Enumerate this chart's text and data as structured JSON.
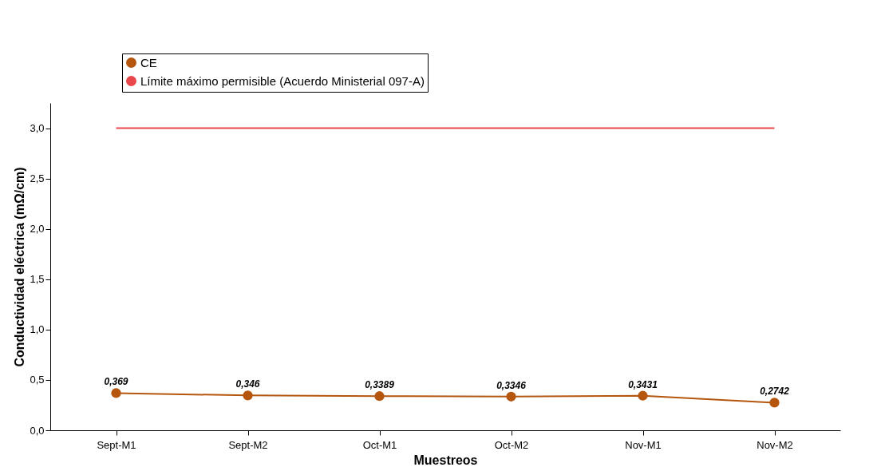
{
  "chart_data": {
    "type": "line",
    "xlabel": "Muestreos",
    "ylabel": "Conductividad eléctrica (mΩ/cm)",
    "categories": [
      "Sept-M1",
      "Sept-M2",
      "Oct-M1",
      "Oct-M2",
      "Nov-M1",
      "Nov-M2"
    ],
    "series": [
      {
        "name": "CE",
        "color": "#b5560f",
        "marker": "circle",
        "values": [
          0.369,
          0.346,
          0.3389,
          0.3346,
          0.3431,
          0.2742
        ],
        "value_labels": [
          "0,369",
          "0,346",
          "0,3389",
          "0,3346",
          "0,3431",
          "0,2742"
        ]
      },
      {
        "name": "Límite máximo permisible (Acuerdo Ministerial 097-A)",
        "color": "#e8474c",
        "marker": "none",
        "values": [
          3,
          3,
          3,
          3,
          3,
          3
        ]
      }
    ],
    "ylim": [
      0,
      3.25
    ],
    "yticks": [
      {
        "value": 0,
        "label": "0,0"
      },
      {
        "value": 0.5,
        "label": "0,5"
      },
      {
        "value": 1,
        "label": "1,0"
      },
      {
        "value": 1.5,
        "label": "1,5"
      },
      {
        "value": 2,
        "label": "2,0"
      },
      {
        "value": 2.5,
        "label": "2,5"
      },
      {
        "value": 3,
        "label": "3,0"
      }
    ],
    "grid": false,
    "legend": "top left",
    "line_style": "solid"
  }
}
